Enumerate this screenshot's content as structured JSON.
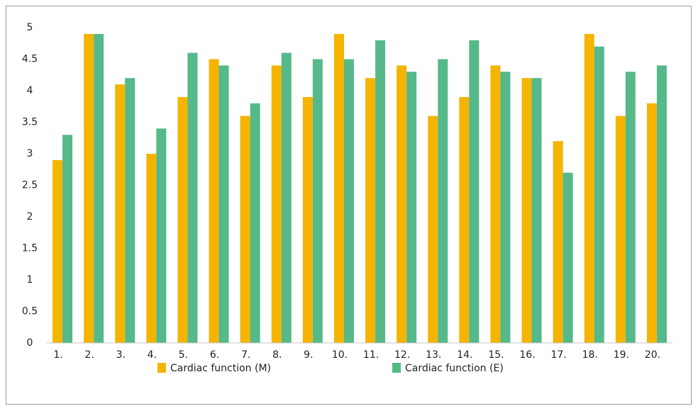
{
  "chart_data": {
    "type": "bar",
    "categories": [
      "1.",
      "2.",
      "3.",
      "4.",
      "5.",
      "6.",
      "7.",
      "8.",
      "9.",
      "10.",
      "11.",
      "12.",
      "13.",
      "14.",
      "15.",
      "16.",
      "17.",
      "18.",
      "19.",
      "20."
    ],
    "series": [
      {
        "name": "Cardiac function (M)",
        "color": "#f4b400",
        "values": [
          2.9,
          4.9,
          4.1,
          3.0,
          3.9,
          4.5,
          3.6,
          4.4,
          3.9,
          4.9,
          4.2,
          4.4,
          3.6,
          3.9,
          4.4,
          4.2,
          3.2,
          4.9,
          3.6,
          3.8
        ]
      },
      {
        "name": "Cardiac function (E)",
        "color": "#55b98a",
        "values": [
          3.3,
          4.9,
          4.2,
          3.4,
          4.6,
          4.4,
          3.8,
          4.6,
          4.5,
          4.5,
          4.8,
          4.3,
          4.5,
          4.8,
          4.3,
          4.2,
          2.7,
          4.7,
          4.3,
          4.4
        ]
      }
    ],
    "ylim": [
      0,
      5
    ],
    "yticks": [
      0,
      0.5,
      1,
      1.5,
      2,
      2.5,
      3,
      3.5,
      4,
      4.5,
      5
    ],
    "grid": false,
    "legend": "bottom"
  }
}
